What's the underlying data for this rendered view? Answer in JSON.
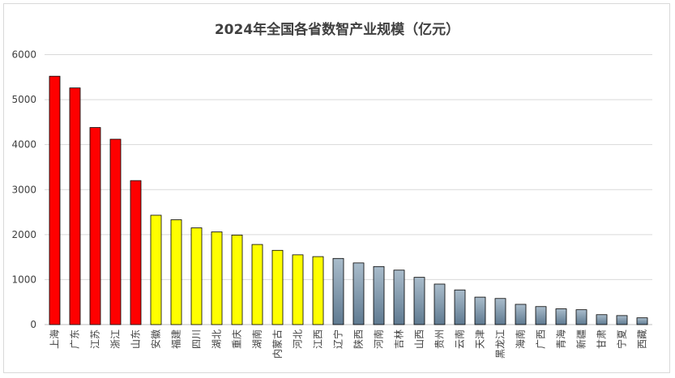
{
  "chart_data": {
    "type": "bar",
    "title": "2024年全国各省数智产业规模（亿元）",
    "xlabel": "",
    "ylabel": "",
    "ylim": [
      0,
      6000
    ],
    "yticks": [
      0,
      1000,
      2000,
      3000,
      4000,
      5000,
      6000
    ],
    "grid": true,
    "legend": "none",
    "categories": [
      "上海",
      "广东",
      "江苏",
      "浙江",
      "山东",
      "安徽",
      "福建",
      "四川",
      "湖北",
      "重庆",
      "湖南",
      "内蒙古",
      "河北",
      "江西",
      "辽宁",
      "陕西",
      "河南",
      "吉林",
      "山西",
      "贵州",
      "云南",
      "天津",
      "黑龙江",
      "海南",
      "广西",
      "青海",
      "新疆",
      "甘肃",
      "宁夏",
      "西藏"
    ],
    "values": [
      5520,
      5260,
      4380,
      4120,
      3200,
      2430,
      2330,
      2150,
      2060,
      1990,
      1780,
      1650,
      1550,
      1510,
      1470,
      1370,
      1290,
      1210,
      1050,
      900,
      770,
      610,
      580,
      450,
      400,
      350,
      330,
      220,
      200,
      150
    ],
    "tiers": [
      1,
      1,
      1,
      1,
      1,
      2,
      2,
      2,
      2,
      2,
      2,
      2,
      2,
      2,
      3,
      3,
      3,
      3,
      3,
      3,
      3,
      3,
      3,
      3,
      3,
      3,
      3,
      3,
      3,
      3
    ],
    "colors": {
      "tier1": "#ff0000",
      "tier2": "#ffff00",
      "tier3_top": "#a9bccb",
      "tier3_bottom": "#5f7a91",
      "outline": "#000000",
      "grid": "#d9d9d9",
      "text": "#404040"
    }
  }
}
